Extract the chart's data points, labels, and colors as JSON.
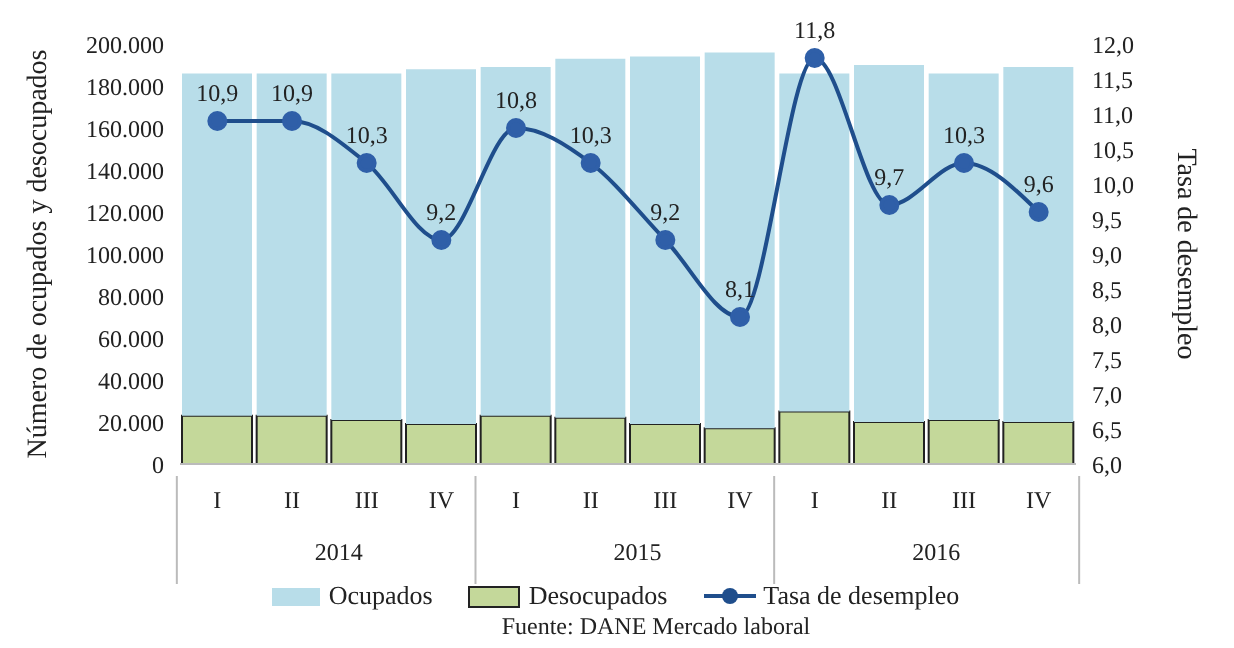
{
  "chart_data": {
    "type": "bar",
    "stacked": true,
    "categories": [
      "I",
      "II",
      "III",
      "IV",
      "I",
      "II",
      "III",
      "IV",
      "I",
      "II",
      "III",
      "IV"
    ],
    "series": [
      {
        "name": "Desocupados",
        "color": "#c4d89a",
        "values": [
          23000,
          23000,
          21000,
          19000,
          23000,
          22000,
          19000,
          17000,
          25000,
          20000,
          21000,
          20000
        ]
      },
      {
        "name": "Ocupados",
        "color": "#b8dde9",
        "values": [
          163000,
          163000,
          165000,
          169000,
          166000,
          171000,
          175000,
          179000,
          161000,
          170000,
          165000,
          169000
        ]
      },
      {
        "name": "Tasa de desempleo",
        "type": "line",
        "axis": "y2",
        "color": "#1f4e8c",
        "values": [
          10.9,
          10.9,
          10.3,
          9.2,
          10.8,
          10.3,
          9.2,
          8.1,
          11.8,
          9.7,
          10.3,
          9.6
        ],
        "value_labels": [
          "10,9",
          "10,9",
          "10,3",
          "9,2",
          "10,8",
          "10,3",
          "9,2",
          "8,1",
          "11,8",
          "9,7",
          "10,3",
          "9,6"
        ]
      }
    ],
    "ylabel": "Número de ocupados y desocupados",
    "y2label": "Tasa de desempleo",
    "ylim": [
      0,
      200000
    ],
    "yticks": [
      {
        "value": 0,
        "label": "0"
      },
      {
        "value": 20000,
        "label": "20.000"
      },
      {
        "value": 40000,
        "label": "40.000"
      },
      {
        "value": 60000,
        "label": "60.000"
      },
      {
        "value": 80000,
        "label": "80.000"
      },
      {
        "value": 100000,
        "label": "100.000"
      },
      {
        "value": 120000,
        "label": "120.000"
      },
      {
        "value": 140000,
        "label": "140.000"
      },
      {
        "value": 160000,
        "label": "160.000"
      },
      {
        "value": 180000,
        "label": "180.000"
      },
      {
        "value": 200000,
        "label": "200.000"
      }
    ],
    "y2lim": [
      6,
      12
    ],
    "y2ticks": [
      {
        "value": 6,
        "label": "6,0"
      },
      {
        "value": 6.5,
        "label": "6,5"
      },
      {
        "value": 7,
        "label": "7,0"
      },
      {
        "value": 7.5,
        "label": "7,5"
      },
      {
        "value": 8,
        "label": "8,0"
      },
      {
        "value": 8.5,
        "label": "8,5"
      },
      {
        "value": 9,
        "label": "9,0"
      },
      {
        "value": 9.5,
        "label": "9,5"
      },
      {
        "value": 10,
        "label": "10,0"
      },
      {
        "value": 10.5,
        "label": "10,5"
      },
      {
        "value": 11,
        "label": "11,0"
      },
      {
        "value": 11.5,
        "label": "11,5"
      },
      {
        "value": 12,
        "label": "12,0"
      }
    ],
    "marker": "circle",
    "legend": "bottom",
    "annotations": [
      "2014",
      "2015",
      "2016",
      "Fuente: DANE Mercado laboral"
    ]
  }
}
